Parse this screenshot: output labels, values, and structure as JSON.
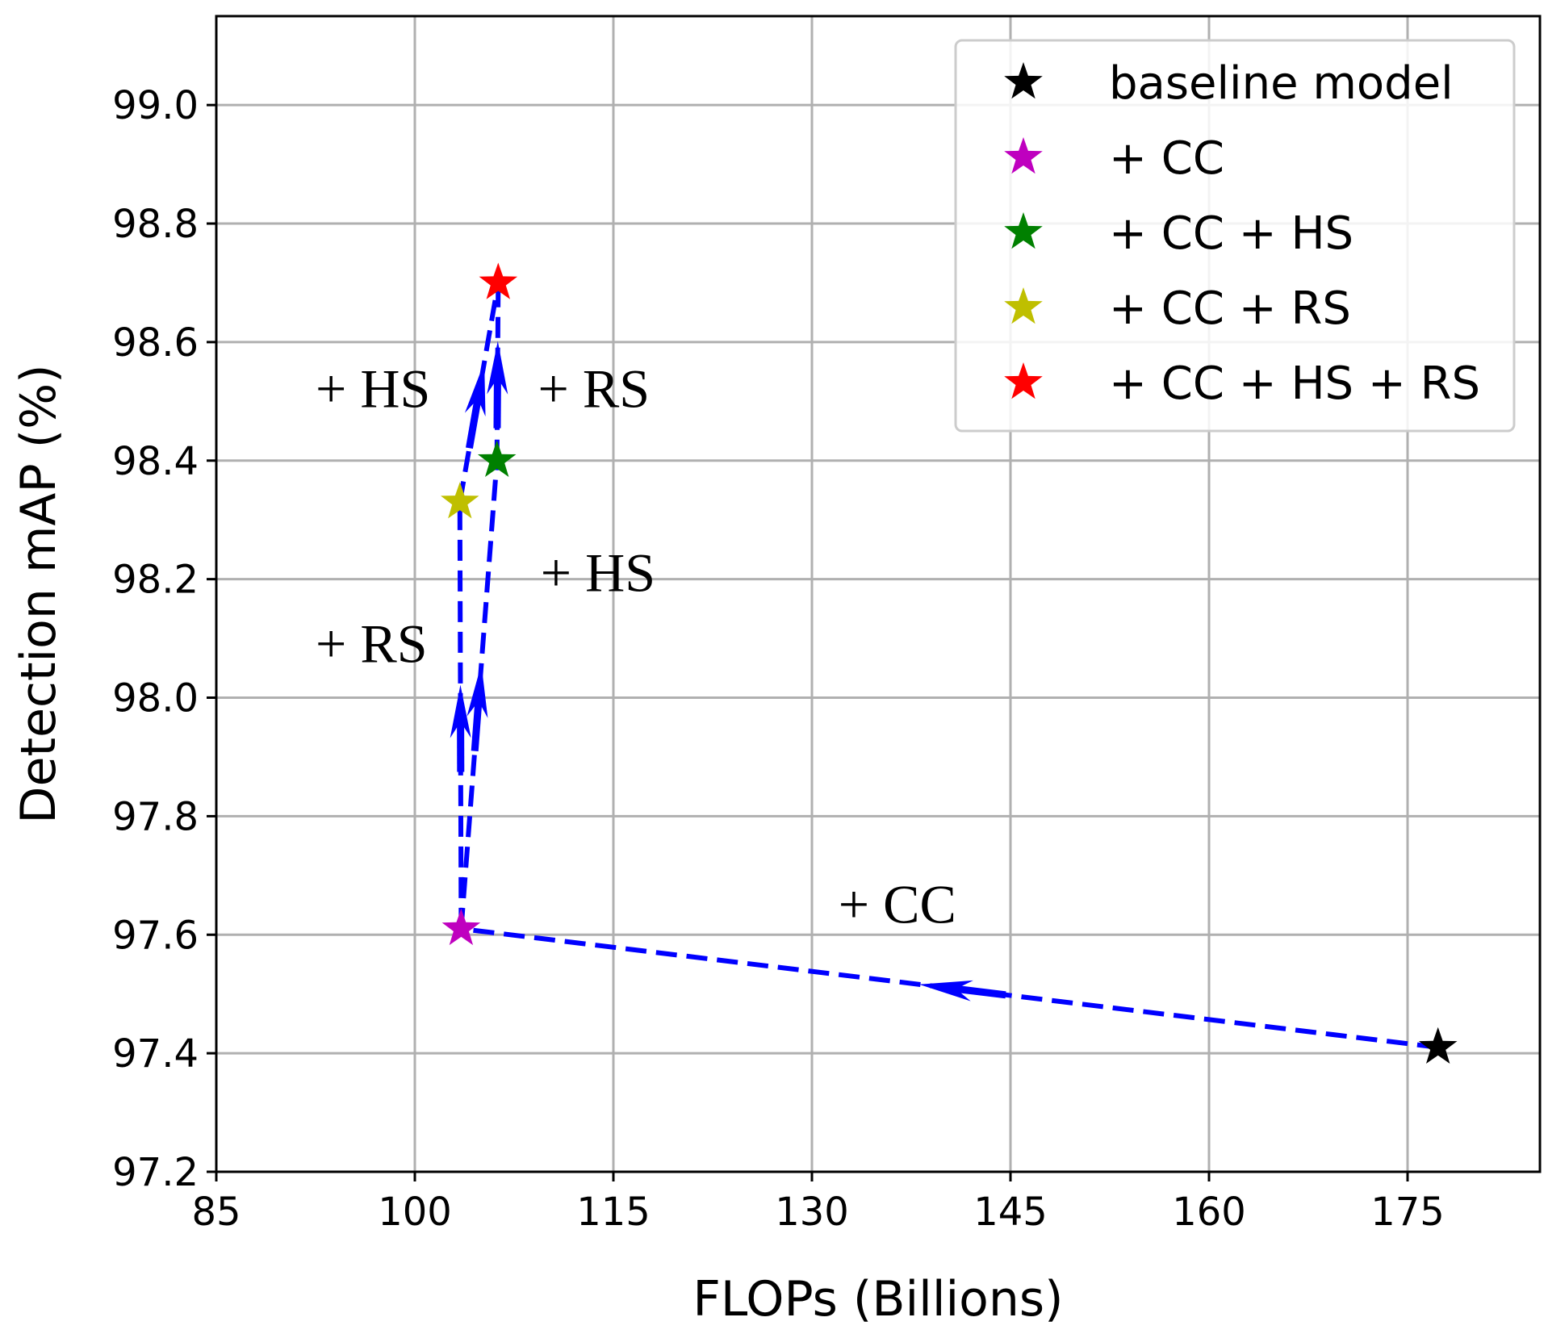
{
  "chart_data": {
    "type": "scatter",
    "xlabel": "FLOPs (Billions)",
    "ylabel": "Detection mAP (%)",
    "xlim": [
      85,
      185
    ],
    "ylim": [
      97.2,
      99.15
    ],
    "xticks": [
      85,
      100,
      115,
      130,
      145,
      160,
      175
    ],
    "xtick_labels": [
      "85",
      "100",
      "115",
      "130",
      "145",
      "160",
      "175"
    ],
    "yticks": [
      97.2,
      97.4,
      97.6,
      97.8,
      98.0,
      98.2,
      98.4,
      98.6,
      98.8,
      99.0
    ],
    "ytick_labels": [
      "97.2",
      "97.4",
      "97.6",
      "97.8",
      "98.0",
      "98.2",
      "98.4",
      "98.6",
      "98.8",
      "99.0"
    ],
    "grid": true,
    "legend_position": "top-right",
    "series": [
      {
        "name": "baseline model",
        "x": 177.3,
        "y": 97.41,
        "color": "#000000",
        "marker": "star"
      },
      {
        "name": "+ CC",
        "x": 103.5,
        "y": 97.61,
        "color": "#bf00bf",
        "marker": "star"
      },
      {
        "name": "+ CC + HS",
        "x": 106.2,
        "y": 98.4,
        "color": "#008000",
        "marker": "star"
      },
      {
        "name": "+ CC + RS",
        "x": 103.4,
        "y": 98.33,
        "color": "#bfbf00",
        "marker": "star"
      },
      {
        "name": "+ CC + HS + RS",
        "x": 106.3,
        "y": 98.7,
        "color": "#ff0000",
        "marker": "star"
      }
    ],
    "paths": [
      {
        "from": 0,
        "to": 1,
        "label": "+ CC"
      },
      {
        "from": 1,
        "to": 2,
        "label": "+ HS"
      },
      {
        "from": 1,
        "to": 3,
        "label": "+ RS"
      },
      {
        "from": 2,
        "to": 4,
        "label": "+ RS"
      },
      {
        "from": 3,
        "to": 4,
        "label": "+ HS"
      }
    ],
    "path_color": "#0000ff",
    "annotations": [
      {
        "text": "+ CC",
        "x": 132.0,
        "y": 97.62
      },
      {
        "text": "+ HS",
        "x": 109.5,
        "y": 98.18
      },
      {
        "text": "+ RS",
        "x": 92.5,
        "y": 98.06
      },
      {
        "text": "+ HS",
        "x": 92.5,
        "y": 98.49
      },
      {
        "text": "+ RS",
        "x": 109.3,
        "y": 98.49
      }
    ]
  }
}
